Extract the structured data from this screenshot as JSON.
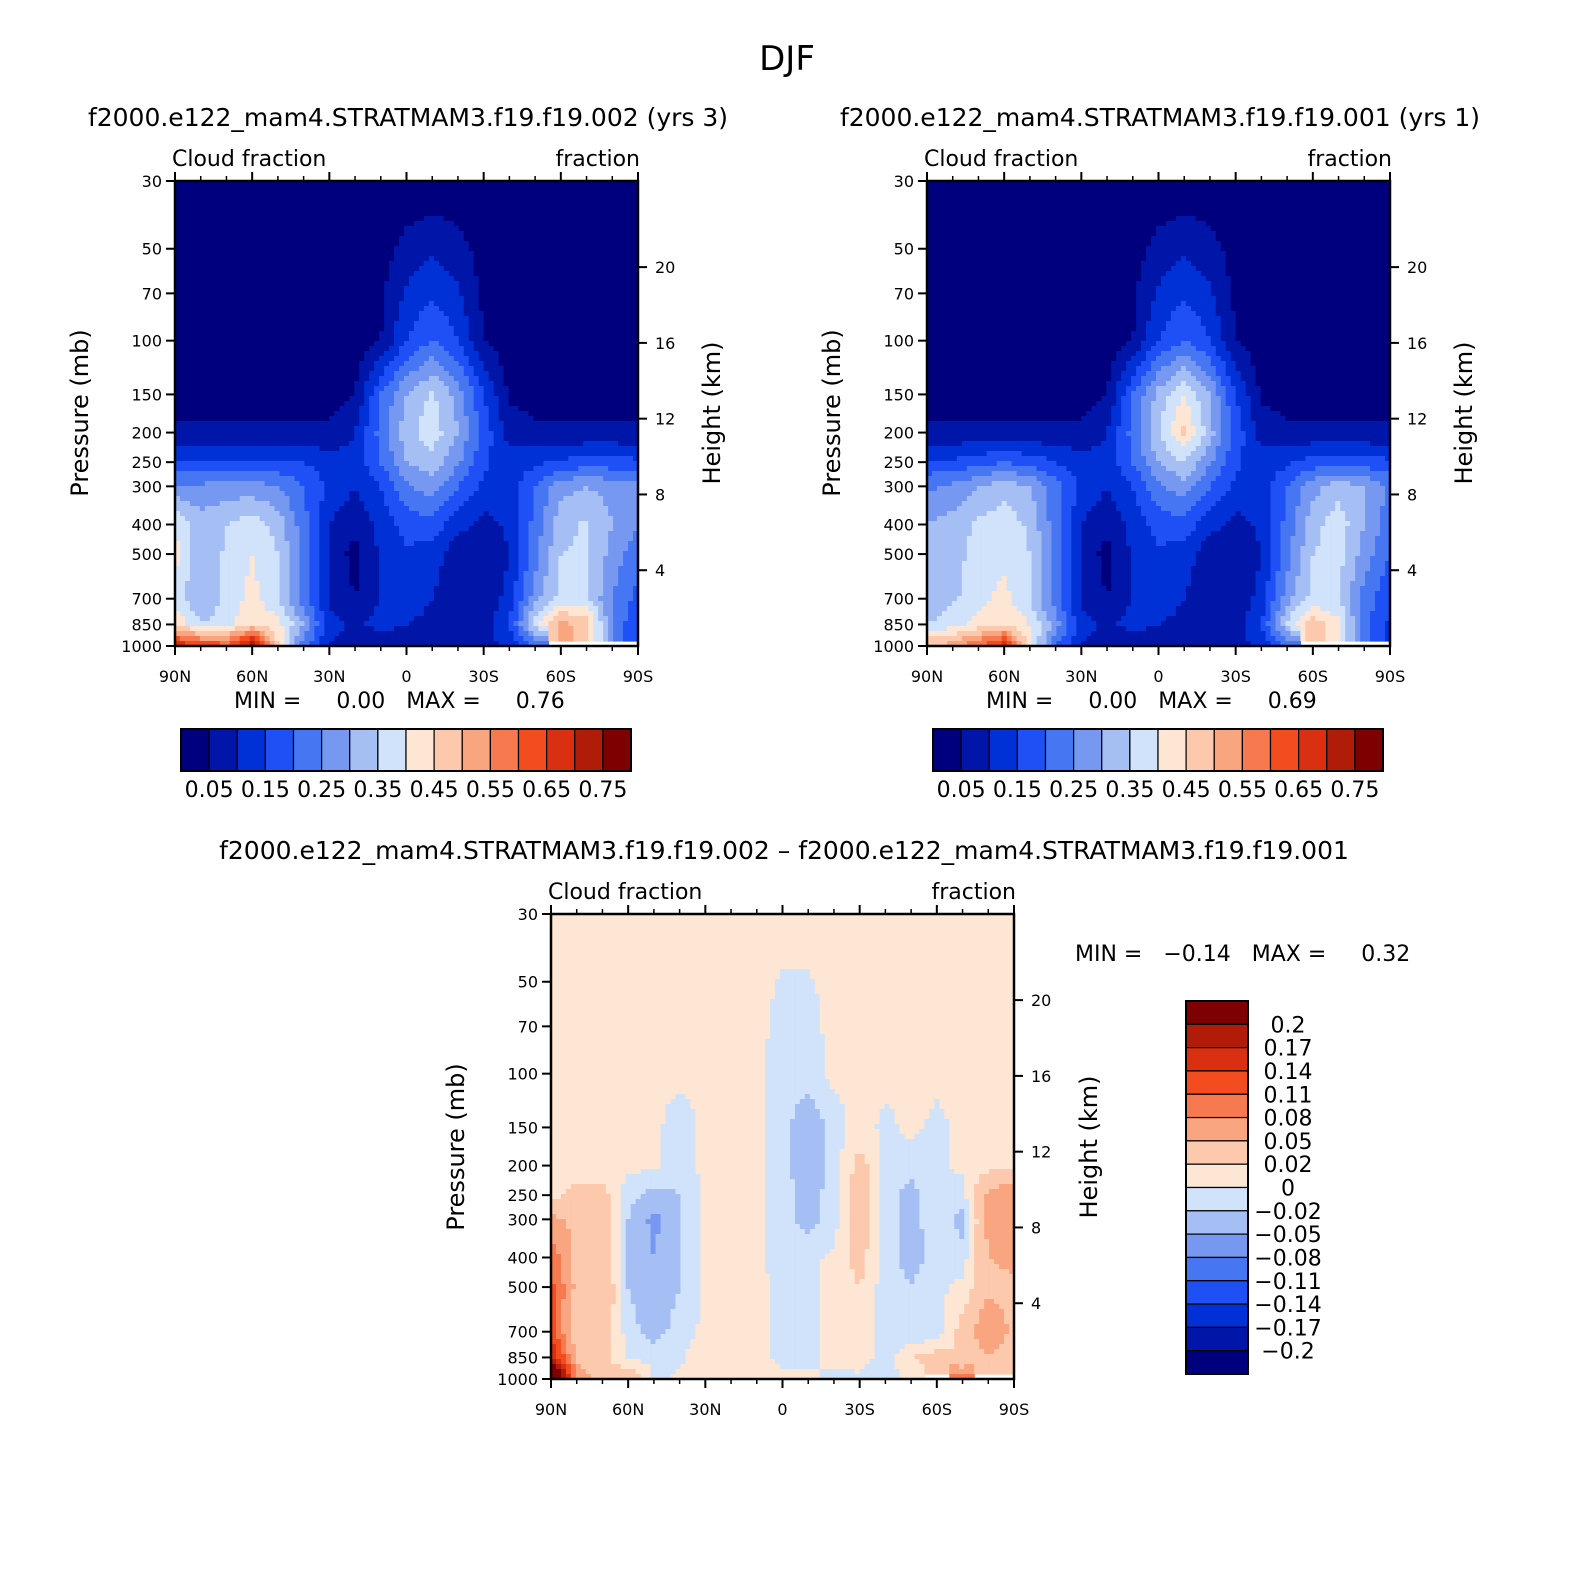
{
  "figure": {
    "title": "DJF"
  },
  "panels": [
    {
      "id": "top-left",
      "title": "f2000.e122_mam4.STRATMAM3.f19.f19.002 (yrs 3)",
      "left_label": "Cloud fraction",
      "right_label": "fraction",
      "ylabel": "Pressure (mb)",
      "y2label": "Height (km)",
      "minmax_text": "MIN =     0.00   MAX =     0.76",
      "colorbar_labels": [
        "0.05",
        "0.15",
        "0.25",
        "0.35",
        "0.45",
        "0.55",
        "0.65",
        "0.75"
      ]
    },
    {
      "id": "top-right",
      "title": "f2000.e122_mam4.STRATMAM3.f19.f19.001 (yrs 1)",
      "left_label": "Cloud fraction",
      "right_label": "fraction",
      "ylabel": "Pressure (mb)",
      "y2label": "Height (km)",
      "minmax_text": "MIN =     0.00   MAX =     0.69",
      "colorbar_labels": [
        "0.05",
        "0.15",
        "0.25",
        "0.35",
        "0.45",
        "0.55",
        "0.65",
        "0.75"
      ]
    },
    {
      "id": "bottom",
      "title": "f2000.e122_mam4.STRATMAM3.f19.f19.002 – f2000.e122_mam4.STRATMAM3.f19.f19.001",
      "left_label": "Cloud fraction",
      "right_label": "fraction",
      "ylabel": "Pressure (mb)",
      "y2label": "Height (km)",
      "minmax_text": "MIN =   −0.14   MAX =     0.32",
      "colorbar_labels": [
        "0.2",
        "0.17",
        "0.14",
        "0.11",
        "0.08",
        "0.05",
        "0.02",
        "0",
        "−0.02",
        "−0.05",
        "−0.08",
        "−0.11",
        "−0.14",
        "−0.17",
        "−0.2"
      ]
    }
  ],
  "chart_data": [
    {
      "type": "heatmap",
      "title": "f2000.e122_mam4.STRATMAM3.f19.f19.002 (yrs 3)",
      "xlabel": "",
      "ylabel": "Pressure (mb)",
      "y2label": "Height (km)",
      "x_ticks": [
        "90N",
        "60N",
        "30N",
        "0",
        "30S",
        "60S",
        "90S"
      ],
      "y_ticks": [
        "30",
        "50",
        "70",
        "100",
        "150",
        "200",
        "250",
        "300",
        "400",
        "500",
        "700",
        "850",
        "1000"
      ],
      "y2_ticks": [
        "20",
        "16",
        "12",
        "8",
        "4"
      ],
      "x_range": [
        90,
        -90
      ],
      "y_range": [
        30,
        1000
      ],
      "y_scale": "log",
      "min": 0.0,
      "max": 0.76,
      "levels": [
        0.05,
        0.1,
        0.15,
        0.2,
        0.25,
        0.3,
        0.35,
        0.4,
        0.45,
        0.5,
        0.55,
        0.6,
        0.65,
        0.7,
        0.75
      ],
      "colors": [
        "#00007f",
        "#0016a8",
        "#0031d6",
        "#1e50f5",
        "#4676f2",
        "#7698f0",
        "#a5bff5",
        "#d0e3fb",
        "#fde6d4",
        "#fcc9ac",
        "#f9a580",
        "#f7794f",
        "#f24c1f",
        "#d83010",
        "#b01c08",
        "#7e0000"
      ],
      "lat": [
        90,
        80,
        70,
        60,
        50,
        40,
        30,
        20,
        10,
        0,
        -10,
        -20,
        -30,
        -40,
        -50,
        -60,
        -70,
        -80,
        -90
      ],
      "pressure": [
        30,
        100,
        150,
        200,
        250,
        300,
        400,
        500,
        700,
        850,
        1000
      ],
      "values": [
        [
          0.01,
          0.01,
          0.01,
          0.01,
          0.01,
          0.01,
          0.01,
          0.01,
          0.01,
          0.01,
          0.01,
          0.01,
          0.01,
          0.01,
          0.01,
          0.01,
          0.01,
          0.01,
          0.01
        ],
        [
          0.02,
          0.02,
          0.02,
          0.02,
          0.02,
          0.02,
          0.02,
          0.02,
          0.05,
          0.15,
          0.2,
          0.15,
          0.05,
          0.02,
          0.02,
          0.02,
          0.02,
          0.02,
          0.02
        ],
        [
          0.03,
          0.03,
          0.03,
          0.03,
          0.03,
          0.03,
          0.03,
          0.05,
          0.2,
          0.3,
          0.36,
          0.28,
          0.15,
          0.04,
          0.03,
          0.03,
          0.03,
          0.03,
          0.03
        ],
        [
          0.06,
          0.06,
          0.06,
          0.06,
          0.06,
          0.06,
          0.06,
          0.1,
          0.22,
          0.33,
          0.38,
          0.3,
          0.18,
          0.08,
          0.06,
          0.06,
          0.06,
          0.06,
          0.06
        ],
        [
          0.16,
          0.16,
          0.16,
          0.16,
          0.16,
          0.15,
          0.12,
          0.12,
          0.2,
          0.3,
          0.33,
          0.26,
          0.16,
          0.12,
          0.14,
          0.16,
          0.17,
          0.17,
          0.16
        ],
        [
          0.26,
          0.26,
          0.27,
          0.27,
          0.25,
          0.2,
          0.14,
          0.1,
          0.15,
          0.24,
          0.28,
          0.2,
          0.14,
          0.12,
          0.2,
          0.28,
          0.3,
          0.28,
          0.26
        ],
        [
          0.4,
          0.32,
          0.35,
          0.38,
          0.33,
          0.22,
          0.1,
          0.06,
          0.12,
          0.17,
          0.18,
          0.12,
          0.08,
          0.11,
          0.22,
          0.33,
          0.36,
          0.3,
          0.25
        ],
        [
          0.42,
          0.3,
          0.36,
          0.4,
          0.35,
          0.23,
          0.09,
          0.03,
          0.11,
          0.14,
          0.13,
          0.06,
          0.05,
          0.1,
          0.23,
          0.35,
          0.36,
          0.28,
          0.22
        ],
        [
          0.38,
          0.3,
          0.36,
          0.42,
          0.35,
          0.22,
          0.09,
          0.05,
          0.1,
          0.12,
          0.1,
          0.06,
          0.06,
          0.12,
          0.28,
          0.37,
          0.36,
          0.25,
          0.18
        ],
        [
          0.45,
          0.35,
          0.38,
          0.45,
          0.42,
          0.3,
          0.12,
          0.09,
          0.12,
          0.1,
          0.09,
          0.08,
          0.08,
          0.15,
          0.38,
          0.52,
          0.48,
          0.25,
          0.15
        ],
        [
          0.7,
          0.65,
          0.62,
          0.76,
          0.45,
          0.22,
          0.1,
          0.06,
          0.05,
          0.07,
          0.05,
          0.06,
          0.07,
          0.12,
          0.2,
          null,
          null,
          null,
          null
        ]
      ]
    },
    {
      "type": "heatmap",
      "title": "f2000.e122_mam4.STRATMAM3.f19.f19.001 (yrs 1)",
      "xlabel": "",
      "ylabel": "Pressure (mb)",
      "y2label": "Height (km)",
      "x_ticks": [
        "90N",
        "60N",
        "30N",
        "0",
        "30S",
        "60S",
        "90S"
      ],
      "y_ticks": [
        "30",
        "50",
        "70",
        "100",
        "150",
        "200",
        "250",
        "300",
        "400",
        "500",
        "700",
        "850",
        "1000"
      ],
      "y2_ticks": [
        "20",
        "16",
        "12",
        "8",
        "4"
      ],
      "x_range": [
        90,
        -90
      ],
      "y_range": [
        30,
        1000
      ],
      "y_scale": "log",
      "min": 0.0,
      "max": 0.69,
      "levels": [
        0.05,
        0.1,
        0.15,
        0.2,
        0.25,
        0.3,
        0.35,
        0.4,
        0.45,
        0.5,
        0.55,
        0.6,
        0.65,
        0.7,
        0.75
      ],
      "colors": [
        "#00007f",
        "#0016a8",
        "#0031d6",
        "#1e50f5",
        "#4676f2",
        "#7698f0",
        "#a5bff5",
        "#d0e3fb",
        "#fde6d4",
        "#fcc9ac",
        "#f9a580",
        "#f7794f",
        "#f24c1f",
        "#d83010",
        "#b01c08",
        "#7e0000"
      ],
      "lat": [
        90,
        80,
        70,
        60,
        50,
        40,
        30,
        20,
        10,
        0,
        -10,
        -20,
        -30,
        -40,
        -50,
        -60,
        -70,
        -80,
        -90
      ],
      "pressure": [
        30,
        100,
        150,
        200,
        250,
        300,
        400,
        500,
        700,
        850,
        1000
      ],
      "values": [
        [
          0.01,
          0.01,
          0.01,
          0.01,
          0.01,
          0.01,
          0.01,
          0.01,
          0.01,
          0.01,
          0.01,
          0.01,
          0.01,
          0.01,
          0.01,
          0.01,
          0.01,
          0.01,
          0.01
        ],
        [
          0.02,
          0.02,
          0.02,
          0.02,
          0.02,
          0.02,
          0.02,
          0.02,
          0.05,
          0.15,
          0.2,
          0.15,
          0.05,
          0.02,
          0.02,
          0.02,
          0.02,
          0.02,
          0.02
        ],
        [
          0.03,
          0.03,
          0.03,
          0.03,
          0.03,
          0.03,
          0.03,
          0.05,
          0.2,
          0.32,
          0.4,
          0.3,
          0.15,
          0.04,
          0.03,
          0.03,
          0.03,
          0.03,
          0.03
        ],
        [
          0.06,
          0.06,
          0.06,
          0.06,
          0.06,
          0.06,
          0.06,
          0.1,
          0.22,
          0.35,
          0.46,
          0.32,
          0.18,
          0.08,
          0.06,
          0.06,
          0.06,
          0.06,
          0.06
        ],
        [
          0.16,
          0.16,
          0.18,
          0.2,
          0.18,
          0.15,
          0.12,
          0.12,
          0.2,
          0.3,
          0.35,
          0.26,
          0.16,
          0.12,
          0.14,
          0.17,
          0.18,
          0.17,
          0.16
        ],
        [
          0.24,
          0.26,
          0.3,
          0.33,
          0.3,
          0.22,
          0.14,
          0.1,
          0.15,
          0.24,
          0.28,
          0.2,
          0.14,
          0.12,
          0.2,
          0.28,
          0.33,
          0.3,
          0.24
        ],
        [
          0.3,
          0.32,
          0.36,
          0.38,
          0.34,
          0.22,
          0.1,
          0.06,
          0.12,
          0.17,
          0.18,
          0.12,
          0.08,
          0.11,
          0.22,
          0.33,
          0.38,
          0.3,
          0.22
        ],
        [
          0.3,
          0.33,
          0.37,
          0.38,
          0.35,
          0.23,
          0.09,
          0.03,
          0.11,
          0.14,
          0.13,
          0.06,
          0.05,
          0.1,
          0.23,
          0.35,
          0.37,
          0.28,
          0.2
        ],
        [
          0.3,
          0.34,
          0.38,
          0.42,
          0.35,
          0.22,
          0.09,
          0.05,
          0.1,
          0.12,
          0.1,
          0.06,
          0.06,
          0.12,
          0.28,
          0.37,
          0.35,
          0.23,
          0.16
        ],
        [
          0.35,
          0.38,
          0.42,
          0.45,
          0.4,
          0.28,
          0.12,
          0.09,
          0.12,
          0.1,
          0.09,
          0.08,
          0.08,
          0.15,
          0.36,
          0.48,
          0.42,
          0.22,
          0.14
        ],
        [
          0.5,
          0.52,
          0.6,
          0.69,
          0.42,
          0.2,
          0.1,
          0.06,
          0.05,
          0.07,
          0.05,
          0.06,
          0.07,
          0.12,
          0.2,
          null,
          null,
          null,
          null
        ]
      ]
    },
    {
      "type": "heatmap",
      "title": "f2000.e122_mam4.STRATMAM3.f19.f19.002 – f2000.e122_mam4.STRATMAM3.f19.f19.001",
      "xlabel": "",
      "ylabel": "Pressure (mb)",
      "y2label": "Height (km)",
      "x_ticks": [
        "90N",
        "60N",
        "30N",
        "0",
        "30S",
        "60S",
        "90S"
      ],
      "y_ticks": [
        "30",
        "50",
        "70",
        "100",
        "150",
        "200",
        "250",
        "300",
        "400",
        "500",
        "700",
        "850",
        "1000"
      ],
      "y2_ticks": [
        "20",
        "16",
        "12",
        "8",
        "4"
      ],
      "x_range": [
        90,
        -90
      ],
      "y_range": [
        30,
        1000
      ],
      "y_scale": "log",
      "min": -0.14,
      "max": 0.32,
      "levels": [
        -0.2,
        -0.17,
        -0.14,
        -0.11,
        -0.08,
        -0.05,
        -0.02,
        0,
        0.02,
        0.05,
        0.08,
        0.11,
        0.14,
        0.17,
        0.2
      ],
      "colors": [
        "#00007f",
        "#0016a8",
        "#0031d6",
        "#1e50f5",
        "#4676f2",
        "#7698f0",
        "#a5bff5",
        "#d0e3fb",
        "#fde6d4",
        "#fcc9ac",
        "#f9a580",
        "#f7794f",
        "#f24c1f",
        "#d83010",
        "#b01c08",
        "#7e0000"
      ],
      "lat": [
        90,
        80,
        70,
        60,
        50,
        40,
        30,
        20,
        10,
        0,
        -10,
        -20,
        -30,
        -40,
        -50,
        -60,
        -70,
        -80,
        -90
      ],
      "pressure": [
        30,
        100,
        150,
        200,
        250,
        300,
        400,
        500,
        700,
        850,
        1000
      ],
      "values": [
        [
          0.005,
          0.005,
          0.005,
          0.005,
          0.005,
          0.005,
          0.005,
          0.005,
          0.005,
          0.005,
          0.005,
          0.005,
          0.005,
          0.005,
          0.005,
          0.005,
          0.005,
          0.005,
          0.005
        ],
        [
          0.005,
          0.005,
          0.005,
          0.005,
          0.005,
          0.005,
          0.005,
          0.005,
          0.005,
          -0.01,
          -0.01,
          0.005,
          0.005,
          0.005,
          0.005,
          0.005,
          0.005,
          0.005,
          0.005
        ],
        [
          0.005,
          0.005,
          0.005,
          0.005,
          0.005,
          -0.01,
          0.005,
          0.005,
          0.005,
          -0.01,
          -0.04,
          -0.01,
          0.01,
          -0.005,
          0.005,
          -0.005,
          0.005,
          0.005,
          0.005
        ],
        [
          0.005,
          0.005,
          0.005,
          0.005,
          0.005,
          -0.01,
          0.005,
          0.005,
          0.005,
          -0.01,
          -0.04,
          -0.01,
          0.03,
          -0.005,
          -0.01,
          -0.005,
          0.005,
          0.01,
          0.01
        ],
        [
          0.01,
          0.03,
          0.03,
          -0.01,
          -0.03,
          -0.02,
          0.005,
          0.01,
          0.005,
          -0.01,
          -0.03,
          -0.01,
          0.04,
          -0.01,
          -0.03,
          -0.005,
          -0.01,
          0.06,
          0.08
        ],
        [
          0.06,
          0.04,
          0.04,
          -0.02,
          -0.06,
          -0.02,
          0.005,
          0.02,
          0.005,
          -0.01,
          -0.03,
          -0.01,
          0.04,
          -0.01,
          -0.03,
          -0.005,
          -0.03,
          0.06,
          0.08
        ],
        [
          0.1,
          0.04,
          0.05,
          -0.03,
          -0.05,
          -0.02,
          0.005,
          0.01,
          0.005,
          -0.01,
          -0.005,
          0.005,
          0.03,
          -0.01,
          -0.03,
          -0.01,
          -0.01,
          0.05,
          0.06
        ],
        [
          0.12,
          0.04,
          0.05,
          -0.02,
          -0.04,
          -0.02,
          0.005,
          0.01,
          0.005,
          -0.005,
          -0.005,
          0.005,
          0.02,
          -0.01,
          -0.02,
          -0.005,
          0.005,
          0.04,
          0.04
        ],
        [
          0.12,
          0.03,
          0.04,
          -0.01,
          -0.03,
          -0.01,
          0.005,
          0.01,
          0.005,
          -0.005,
          -0.005,
          0.005,
          0.02,
          -0.01,
          -0.02,
          -0.01,
          0.03,
          0.08,
          0.04
        ],
        [
          0.18,
          0.04,
          0.03,
          -0.005,
          -0.005,
          -0.005,
          0.02,
          0.01,
          0.005,
          -0.005,
          -0.005,
          0.005,
          0.01,
          -0.01,
          0.02,
          0.03,
          0.02,
          0.05,
          0.03
        ],
        [
          0.32,
          0.08,
          0.02,
          0.05,
          -0.005,
          0.005,
          0.01,
          0.005,
          0.005,
          0.005,
          0.005,
          -0.005,
          -0.005,
          -0.01,
          0.005,
          null,
          0.09,
          null,
          null
        ]
      ]
    }
  ]
}
